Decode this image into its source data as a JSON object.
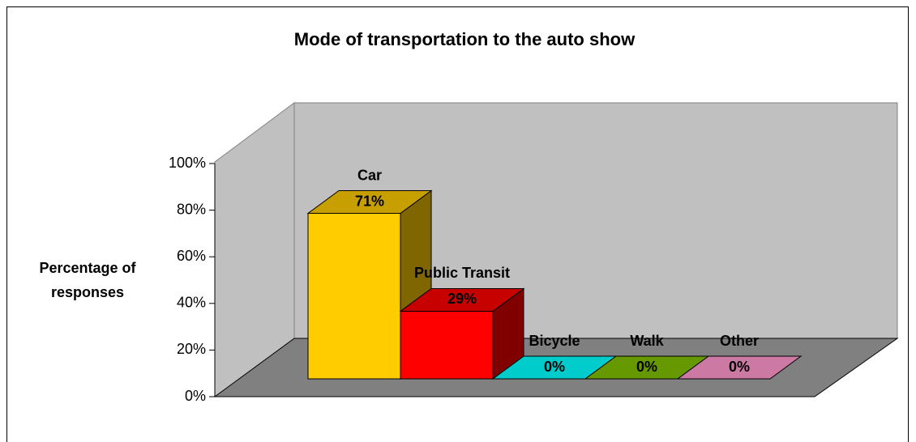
{
  "chart_data": {
    "type": "bar3d",
    "title": "Mode of transportation to the auto show",
    "y_label": "Percentage of responses",
    "categories": [
      "Car",
      "Public Transit",
      "Bicycle",
      "Walk",
      "Other"
    ],
    "values": [
      71,
      29,
      0,
      0,
      0
    ],
    "value_labels": [
      "71%",
      "29%",
      "0%",
      "0%",
      "0%"
    ],
    "colors": [
      "#FFCC00",
      "#FF0000",
      "#00CCCC",
      "#669900",
      "#CC7AA3"
    ],
    "ylim": [
      0,
      100
    ],
    "yticks": [
      {
        "value": 0,
        "label": "0%"
      },
      {
        "value": 20,
        "label": "20%"
      },
      {
        "value": 40,
        "label": "40%"
      },
      {
        "value": 60,
        "label": "60%"
      },
      {
        "value": 80,
        "label": "80%"
      },
      {
        "value": 100,
        "label": "100%"
      }
    ]
  }
}
